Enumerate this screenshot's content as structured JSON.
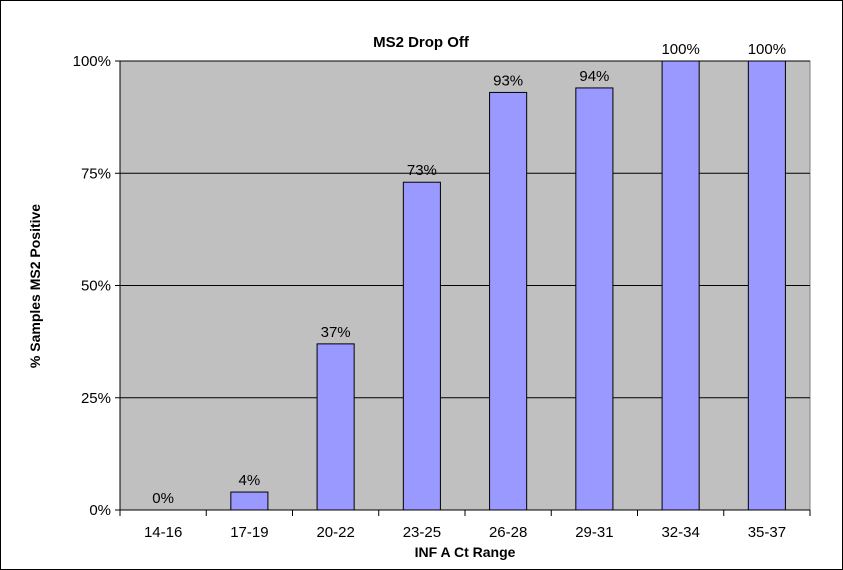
{
  "chart_data": {
    "type": "bar",
    "title": "MS2 Drop Off",
    "xlabel": "INF A Ct Range",
    "ylabel": "% Samples MS2 Positive",
    "categories": [
      "14-16",
      "17-19",
      "20-22",
      "23-25",
      "26-28",
      "29-31",
      "32-34",
      "35-37"
    ],
    "values": [
      0,
      4,
      37,
      73,
      93,
      94,
      100,
      100
    ],
    "data_labels": [
      "0%",
      "4%",
      "37%",
      "73%",
      "93%",
      "94%",
      "100%",
      "100%"
    ],
    "ylim": [
      0,
      100
    ],
    "yticks": [
      0,
      25,
      50,
      75,
      100
    ],
    "ytick_labels": [
      "0%",
      "25%",
      "50%",
      "75%",
      "100%"
    ],
    "grid": true,
    "legend": "none",
    "colors": {
      "bar_fill": "#9999ff",
      "bar_stroke": "#000000",
      "plot_background": "#c0c0c0",
      "gridline": "#000000"
    }
  }
}
